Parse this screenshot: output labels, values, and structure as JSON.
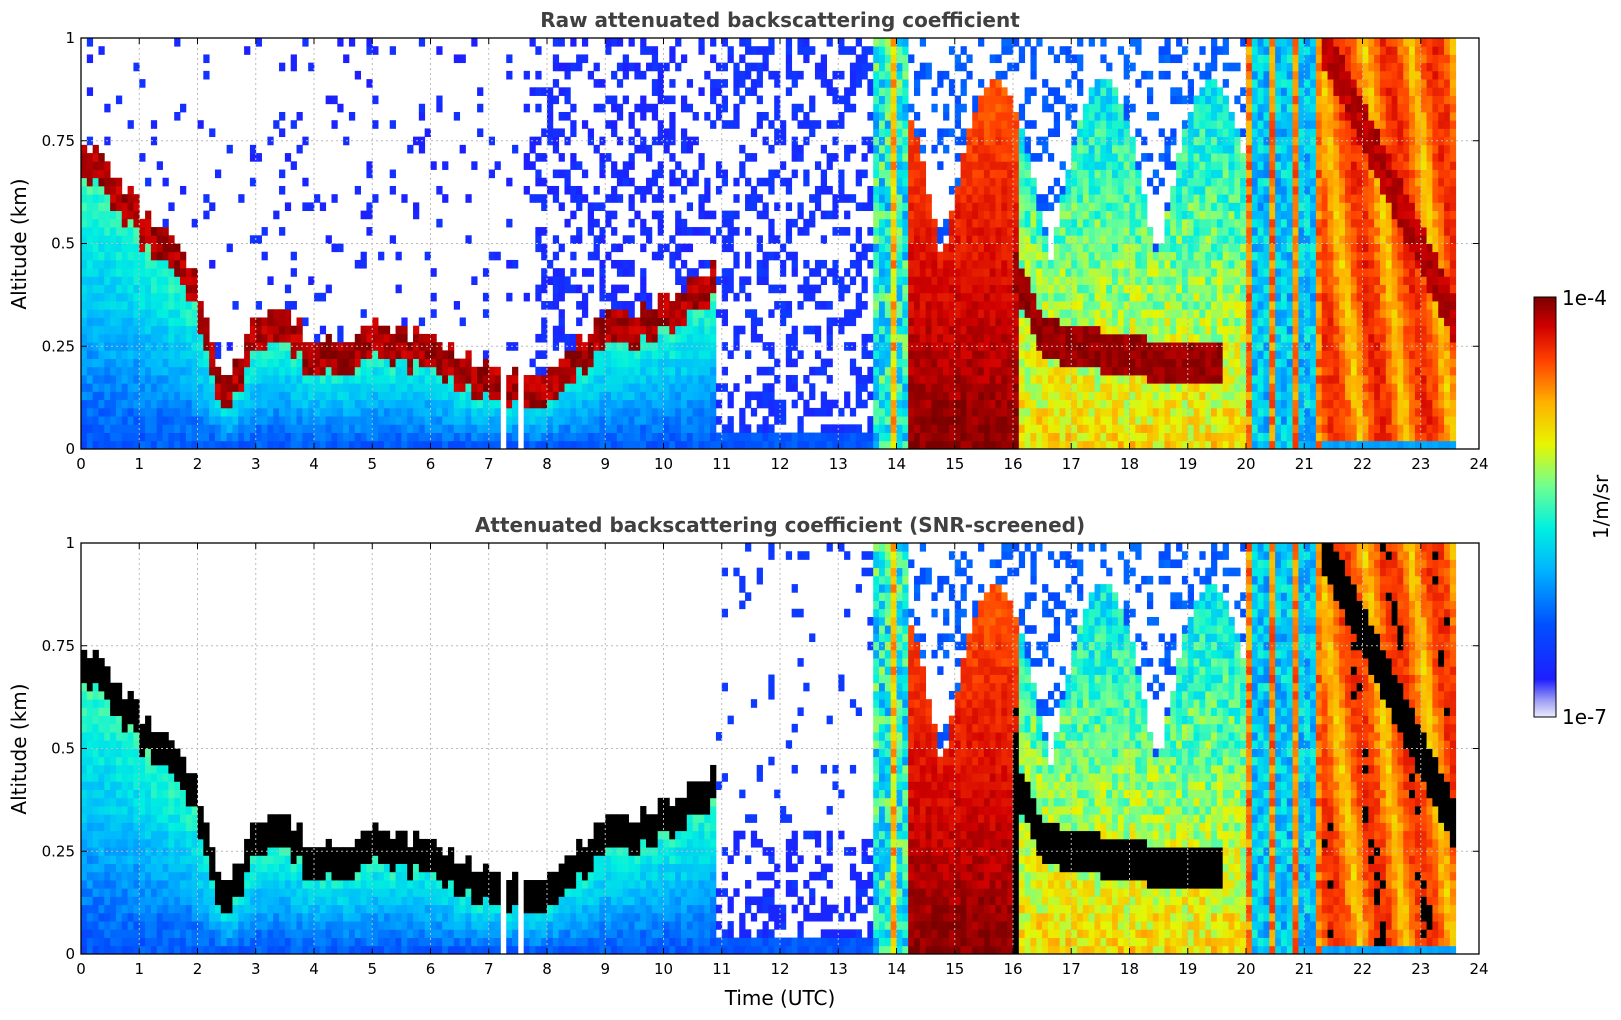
{
  "chart_data": [
    {
      "type": "heatmap",
      "title": "Raw attenuated backscattering coefficient",
      "xlabel": "",
      "ylabel": "Altitude (km)",
      "xlim": [
        0,
        24
      ],
      "ylim": [
        0,
        1
      ],
      "x_ticks": [
        "0",
        "1",
        "2",
        "3",
        "4",
        "5",
        "6",
        "7",
        "8",
        "9",
        "10",
        "11",
        "12",
        "13",
        "14",
        "15",
        "16",
        "17",
        "18",
        "19",
        "20",
        "21",
        "22",
        "23",
        "24"
      ],
      "y_ticks": [
        "0",
        "0.25",
        "0.5",
        "0.75",
        "1"
      ],
      "grid": true,
      "screened": false
    },
    {
      "type": "heatmap",
      "title": "Attenuated backscattering coefficient (SNR-screened)",
      "xlabel": "Time (UTC)",
      "ylabel": "Altitude (km)",
      "xlim": [
        0,
        24
      ],
      "ylim": [
        0,
        1
      ],
      "x_ticks": [
        "0",
        "1",
        "2",
        "3",
        "4",
        "5",
        "6",
        "7",
        "8",
        "9",
        "10",
        "11",
        "12",
        "13",
        "14",
        "15",
        "16",
        "17",
        "18",
        "19",
        "20",
        "21",
        "22",
        "23",
        "24"
      ],
      "y_ticks": [
        "0",
        "0.25",
        "0.5",
        "0.75",
        "1"
      ],
      "grid": true,
      "screened": true
    }
  ],
  "colorbar": {
    "label": "1/m/sr",
    "max_label": "1e-4",
    "min_label": "1e-7",
    "scale": "log",
    "colormap": "jet"
  },
  "layers": {
    "boundary_layer_top_km": [
      [
        0,
        0.72
      ],
      [
        0.3,
        0.68
      ],
      [
        1.0,
        0.55
      ],
      [
        1.5,
        0.48
      ],
      [
        2.0,
        0.36
      ],
      [
        2.5,
        0.1
      ],
      [
        3.0,
        0.3
      ],
      [
        3.5,
        0.3
      ],
      [
        4.0,
        0.22
      ],
      [
        5.0,
        0.26
      ],
      [
        6.0,
        0.24
      ],
      [
        7.0,
        0.15
      ],
      [
        8.0,
        0.15
      ],
      [
        9.0,
        0.28
      ],
      [
        10.0,
        0.32
      ],
      [
        10.8,
        0.4
      ]
    ],
    "cloud_layer_km": [
      [
        16.0,
        0.45
      ],
      [
        16.5,
        0.28
      ],
      [
        17.0,
        0.25
      ],
      [
        18.0,
        0.23
      ],
      [
        19.0,
        0.2
      ],
      [
        19.5,
        0.2
      ]
    ]
  }
}
